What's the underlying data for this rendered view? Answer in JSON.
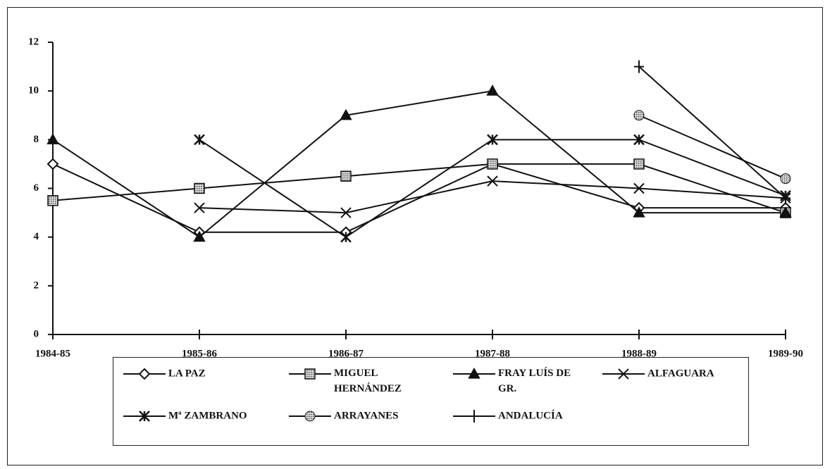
{
  "chart_data": {
    "type": "line",
    "categories": [
      "1984-85",
      "1985-86",
      "1986-87",
      "1987-88",
      "1988-89",
      "1989-90"
    ],
    "ylim": [
      0,
      12
    ],
    "yticks": [
      0,
      2,
      4,
      6,
      8,
      10,
      12
    ],
    "series": [
      {
        "name": "LA PAZ",
        "color": "#111111",
        "marker": "diamond",
        "values": [
          7,
          4.2,
          4.2,
          7,
          5.2,
          5.2
        ]
      },
      {
        "name": "MIGUEL HERNÁNDEZ",
        "color": "#111111",
        "marker": "square",
        "values": [
          5.5,
          6,
          6.5,
          7,
          7,
          5
        ]
      },
      {
        "name": "FRAY LUÍS DE GR.",
        "color": "#111111",
        "marker": "triangle",
        "values": [
          8,
          4,
          9,
          10,
          5,
          5
        ]
      },
      {
        "name": "ALFAGUARA",
        "color": "#111111",
        "marker": "x",
        "values": [
          null,
          5.2,
          5,
          6.3,
          6,
          5.6
        ]
      },
      {
        "name": "Mª ZAMBRANO",
        "color": "#111111",
        "marker": "asterisk",
        "values": [
          null,
          8,
          4,
          8,
          8,
          5.7
        ]
      },
      {
        "name": "ARRAYANES",
        "color": "#111111",
        "marker": "circle",
        "values": [
          null,
          null,
          null,
          null,
          9,
          6.4
        ]
      },
      {
        "name": "ANDALUCÍA",
        "color": "#111111",
        "marker": "plus",
        "values": [
          null,
          null,
          null,
          null,
          11,
          5.6
        ]
      }
    ],
    "legend": "bottom"
  }
}
